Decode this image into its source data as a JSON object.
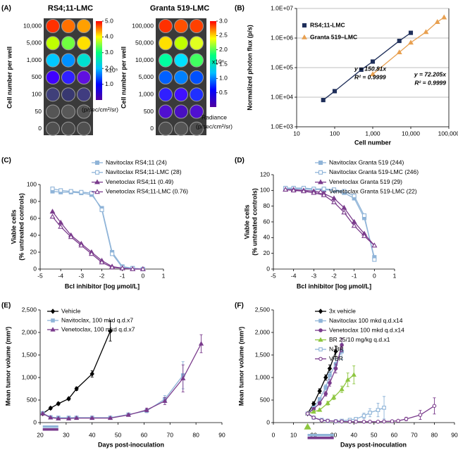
{
  "chart_data": [
    {
      "type": "plate",
      "panel": "(A)",
      "title": "RS4;11-LMC",
      "ylabel": "Cell number per well",
      "rows": [
        "10,000",
        "5,000",
        "1,000",
        "500",
        "100",
        "50",
        "0"
      ],
      "well_colors": [
        [
          "#ff3000",
          "#ff7000",
          "#ffa000"
        ],
        [
          "#c0ff00",
          "#70ff40",
          "#ffe000"
        ],
        [
          "#00c8ff",
          "#0090ff",
          "#00e0d0"
        ],
        [
          "#4000ff",
          "#3020ff",
          "#6010e0"
        ],
        [
          "#40407a",
          "#383870",
          "#403c80"
        ],
        [
          "#555555",
          "#585858",
          "#555555"
        ],
        [
          "#505050",
          "#4c4c4c",
          "#505050"
        ]
      ],
      "colormap": [
        "#5000a0",
        "#0000ff",
        "#00c0ff",
        "#00ff80",
        "#ffff00",
        "#ff0000"
      ],
      "clim": [
        0,
        5
      ],
      "cticks": [
        {
          "value": 1,
          "label": "1.0"
        },
        {
          "value": 2,
          "label": "2.0"
        },
        {
          "value": 3,
          "label": "3.0"
        },
        {
          "value": 4,
          "label": "4.0"
        },
        {
          "value": 5,
          "label": "5.0"
        }
      ],
      "multiplier": "x10⁵",
      "colorbar_label": "(p/sec/cm²/sr)"
    },
    {
      "type": "plate",
      "title": "Granta 519-LMC",
      "ylabel": "Cell number per well",
      "rows": [
        "100,000",
        "50,000",
        "10,000",
        "5,000",
        "1,000",
        "500",
        "0"
      ],
      "well_colors": [
        [
          "#ff3000",
          "#ff5000",
          "#ff4000"
        ],
        [
          "#ffe000",
          "#c0ff00",
          "#e0ff20"
        ],
        [
          "#00ffa0",
          "#00e0ff",
          "#40ff60"
        ],
        [
          "#0060ff",
          "#0080ff",
          "#0050ff"
        ],
        [
          "#3020ff",
          "#4010ff",
          "#2030ff"
        ],
        [
          "#5010d0",
          "#4810c0",
          "#5010d0"
        ],
        [
          "#505050",
          "#555555",
          "#505050"
        ]
      ],
      "colormap": [
        "#5000a0",
        "#0000ff",
        "#00c0ff",
        "#00ff80",
        "#ffff00",
        "#ff0000"
      ],
      "clim": [
        0,
        3
      ],
      "cticks": [
        {
          "value": 0.5,
          "label": "0.5"
        },
        {
          "value": 1,
          "label": "1.0"
        },
        {
          "value": 1.5,
          "label": "1.5"
        },
        {
          "value": 2,
          "label": "2.0"
        },
        {
          "value": 2.5,
          "label": "2.5"
        },
        {
          "value": 3,
          "label": "3.0"
        }
      ],
      "multiplier": "x10⁶",
      "colorbar_title": "Radiance",
      "colorbar_label": "(p/sec/cm²/sr)"
    },
    {
      "type": "scatter",
      "panel": "(B)",
      "xlabel": "Cell number",
      "ylabel": "Normalized photon flux (p/s)",
      "xlog": true,
      "ylog": true,
      "grid": true,
      "xlim": [
        10,
        100000
      ],
      "xticks": [
        10,
        100,
        {
          "value": 1000,
          "label": "1,000"
        },
        {
          "value": 10000,
          "label": "10,000"
        },
        {
          "value": 100000,
          "label": "100,000"
        }
      ],
      "ylim": [
        1000,
        10000000
      ],
      "yticks": [
        {
          "value": 1000,
          "label": "1.0E+03"
        },
        {
          "value": 10000,
          "label": "1.0E+04"
        },
        {
          "value": 100000,
          "label": "1.0E+05"
        },
        {
          "value": 1000000,
          "label": "1.0E+06"
        },
        {
          "value": 10000000,
          "label": "1.0E+07"
        }
      ],
      "series": [
        {
          "name": "RS4;11-LMC",
          "color": "#1f2f5a",
          "marker": "square",
          "filled": true,
          "x": [
            50,
            100,
            500,
            1000,
            5000,
            10000
          ],
          "values": [
            8000,
            16000,
            85000,
            160000,
            800000,
            1500000
          ]
        },
        {
          "name": "Granta 519–LMC",
          "color": "#e8a050",
          "marker": "triangle",
          "filled": true,
          "x": [
            1000,
            5000,
            10000,
            25000,
            50000,
            75000
          ],
          "values": [
            60000,
            330000,
            700000,
            1600000,
            3500000,
            5000000
          ]
        }
      ],
      "annotations": [
        {
          "text": "y = 150.81x",
          "color": "#1f2f5a"
        },
        {
          "text": "R² = 0.9999",
          "color": "#1f2f5a"
        },
        {
          "text": "y = 72.205x",
          "color": "#e8a050"
        },
        {
          "text": "R² = 0.9999",
          "color": "#e8a050"
        }
      ]
    },
    {
      "type": "line",
      "panel": "(C)",
      "xlabel": "Bcl inhibitor [log µmol/L]",
      "ylabel": [
        "Viable cells",
        "(% untreated controls)"
      ],
      "xlim": [
        -5,
        1
      ],
      "xticks": [
        -5,
        -4,
        -3,
        -2,
        -1,
        0,
        1
      ],
      "ylim": [
        0,
        100
      ],
      "yticks": [
        0,
        20,
        40,
        60,
        80,
        100
      ],
      "series": [
        {
          "name": "Navitoclax RS4;11 (24)",
          "color": "#8fb4d8",
          "marker": "square",
          "filled": true,
          "x": [
            -4.4,
            -4,
            -3.5,
            -3,
            -2.5,
            -2,
            -1.5,
            -1,
            -0.5,
            0
          ],
          "values": [
            92,
            91,
            91,
            90,
            88,
            72,
            20,
            3,
            1,
            0
          ]
        },
        {
          "name": "Navitoclax RS4;11-LMC (28)",
          "color": "#8fb4d8",
          "marker": "square",
          "filled": false,
          "x": [
            -4.4,
            -4,
            -3.5,
            -3,
            -2.5,
            -2,
            -1.5,
            -1,
            -0.5,
            0
          ],
          "values": [
            95,
            93,
            92,
            91,
            90,
            70,
            18,
            2,
            1,
            0
          ]
        },
        {
          "name": "Venetoclax RS4;11 (0.49)",
          "color": "#7a3b8c",
          "marker": "triangle",
          "filled": true,
          "x": [
            -4.4,
            -4,
            -3.5,
            -3,
            -2.5,
            -2,
            -1.5,
            -1,
            -0.5,
            0
          ],
          "values": [
            68,
            55,
            40,
            30,
            20,
            10,
            3,
            1,
            0,
            0
          ]
        },
        {
          "name": "Venetoclax RS4;11-LMC (0.76)",
          "color": "#7a3b8c",
          "marker": "triangle",
          "filled": false,
          "x": [
            -4.4,
            -4,
            -3.5,
            -3,
            -2.5,
            -2,
            -1.5,
            -1,
            -0.5,
            0
          ],
          "values": [
            62,
            50,
            38,
            28,
            18,
            8,
            2,
            1,
            0,
            0
          ]
        }
      ]
    },
    {
      "type": "line",
      "panel": "(D)",
      "xlabel": "Bcl inhibitor [log µmol/L]",
      "ylabel": [
        "Viable cells",
        "(% untreated controls)"
      ],
      "xlim": [
        -5,
        1
      ],
      "xticks": [
        -5,
        -4,
        -3,
        -2,
        -1,
        0,
        1
      ],
      "ylim": [
        0,
        120
      ],
      "yticks": [
        0,
        20,
        40,
        60,
        80,
        100,
        120
      ],
      "series": [
        {
          "name": "Navitoclax Granta 519 (244)",
          "color": "#8fb4d8",
          "marker": "square",
          "filled": true,
          "x": [
            -4.4,
            -4,
            -3.5,
            -3,
            -2.5,
            -2,
            -1.5,
            -1,
            -0.5,
            0
          ],
          "values": [
            102,
            102,
            102,
            101,
            101,
            100,
            97,
            90,
            65,
            15
          ]
        },
        {
          "name": "Navitoclax Granta 519-LMC (246)",
          "color": "#8fb4d8",
          "marker": "square",
          "filled": false,
          "x": [
            -4.4,
            -4,
            -3.5,
            -3,
            -2.5,
            -2,
            -1.5,
            -1,
            -0.5,
            0
          ],
          "values": [
            103,
            103,
            103,
            102,
            102,
            101,
            99,
            93,
            68,
            12
          ]
        },
        {
          "name": "Venetoclax Granta 519 (29)",
          "color": "#7a3b8c",
          "marker": "triangle",
          "filled": true,
          "x": [
            -4.4,
            -4,
            -3.5,
            -3,
            -2.5,
            -2,
            -1.5,
            -1,
            -0.5,
            0
          ],
          "values": [
            101,
            101,
            100,
            99,
            96,
            90,
            78,
            60,
            45,
            30
          ]
        },
        {
          "name": "Venetoclax Granta 519-LMC (22)",
          "color": "#7a3b8c",
          "marker": "triangle",
          "filled": false,
          "x": [
            -4.4,
            -4,
            -3.5,
            -3,
            -2.5,
            -2,
            -1.5,
            -1,
            -0.5,
            0
          ],
          "values": [
            101,
            100,
            99,
            97,
            94,
            85,
            72,
            55,
            42,
            30
          ]
        }
      ]
    },
    {
      "type": "line",
      "panel": "(E)",
      "xlabel": "Days post-inoculation",
      "ylabel": "Mean tumor volume (mm³)",
      "xlim": [
        20,
        90
      ],
      "xticks": [
        20,
        30,
        40,
        50,
        60,
        70,
        80,
        90
      ],
      "ylim": [
        0,
        2500
      ],
      "yticks": [
        0,
        500,
        {
          "value": 1000,
          "label": "1,000"
        },
        {
          "value": 1500,
          "label": "1,500"
        },
        {
          "value": 2000,
          "label": "2,000"
        },
        {
          "value": 2500,
          "label": "2,500"
        }
      ],
      "series": [
        {
          "name": "Vehicle",
          "color": "#000000",
          "marker": "diamond",
          "filled": true,
          "x": [
            21,
            24,
            27,
            31,
            34,
            40,
            47
          ],
          "values": [
            200,
            320,
            420,
            530,
            750,
            1080,
            2030
          ],
          "errors": [
            20,
            30,
            30,
            30,
            40,
            70,
            220
          ]
        },
        {
          "name": "Navitoclax, 100 mkd q.d.x7",
          "color": "#8fb4d8",
          "marker": "square",
          "filled": true,
          "x": [
            21,
            24,
            27,
            31,
            34,
            40,
            47,
            54,
            61,
            68,
            75
          ],
          "values": [
            210,
            120,
            110,
            110,
            110,
            110,
            110,
            180,
            260,
            520,
            1050
          ],
          "errors": [
            20,
            20,
            15,
            15,
            15,
            15,
            15,
            25,
            40,
            80,
            300
          ]
        },
        {
          "name": "Venetoclax, 100 mkd q.d.x7",
          "color": "#7a3b8c",
          "marker": "triangle",
          "filled": true,
          "x": [
            21,
            24,
            27,
            31,
            34,
            40,
            47,
            54,
            61,
            68,
            75,
            82
          ],
          "values": [
            200,
            110,
            90,
            90,
            100,
            100,
            100,
            170,
            280,
            480,
            980,
            1750
          ],
          "errors": [
            20,
            15,
            15,
            15,
            15,
            15,
            15,
            25,
            40,
            80,
            300,
            200
          ]
        }
      ],
      "treatment": [
        {
          "color": "#8fb4d8",
          "start": 21,
          "end": 27
        },
        {
          "color": "#7a3b8c",
          "start": 21,
          "end": 27
        }
      ]
    },
    {
      "type": "line",
      "panel": "(F)",
      "xlabel": "Days post-inoculation",
      "ylabel": "Mean tumor volume (mm³)",
      "xlim": [
        0,
        90
      ],
      "xticks": [
        0,
        10,
        20,
        30,
        40,
        50,
        60,
        70,
        80,
        90
      ],
      "ylim": [
        0,
        2500
      ],
      "yticks": [
        0,
        500,
        {
          "value": 1000,
          "label": "1,000"
        },
        {
          "value": 1500,
          "label": "1,500"
        },
        {
          "value": 2000,
          "label": "2,000"
        },
        {
          "value": 2500,
          "label": "2,500"
        }
      ],
      "series": [
        {
          "name": "3x vehicle",
          "color": "#000000",
          "marker": "diamond",
          "filled": true,
          "x": [
            17,
            20,
            23,
            26,
            28,
            31
          ],
          "values": [
            200,
            420,
            700,
            1000,
            1200,
            1580
          ],
          "errors": [
            20,
            40,
            50,
            60,
            80,
            120
          ]
        },
        {
          "name": "Navitoclax 100 mkd q.d.x14",
          "color": "#8fb4d8",
          "marker": "square",
          "filled": true,
          "x": [
            17,
            20,
            23,
            26,
            28,
            31,
            34
          ],
          "values": [
            200,
            330,
            520,
            780,
            1050,
            1300,
            1580
          ],
          "errors": [
            20,
            30,
            40,
            60,
            80,
            120,
            180
          ]
        },
        {
          "name": "Venetoclax 100 mkd q.d.x14",
          "color": "#7a3b8c",
          "marker": "circle",
          "filled": true,
          "x": [
            17,
            20,
            23,
            26,
            28,
            31,
            34
          ],
          "values": [
            200,
            300,
            430,
            640,
            880,
            1200,
            1720
          ],
          "errors": [
            20,
            30,
            40,
            50,
            70,
            100,
            150
          ]
        },
        {
          "name": "BR 25/10 mg/kg q.d.x1",
          "color": "#8dc63f",
          "marker": "triangle",
          "filled": true,
          "x": [
            17,
            20,
            23,
            27,
            30,
            34,
            37,
            40
          ],
          "values": [
            200,
            240,
            280,
            430,
            560,
            740,
            950,
            1060
          ],
          "errors": [
            20,
            20,
            30,
            40,
            50,
            70,
            150,
            200
          ]
        },
        {
          "name": "N-BR",
          "color": "#8fb4d8",
          "marker": "square",
          "filled": false,
          "x": [
            17,
            20,
            24,
            27,
            31,
            34,
            38,
            41,
            45,
            48,
            52,
            55
          ],
          "values": [
            200,
            110,
            60,
            40,
            30,
            40,
            60,
            80,
            150,
            220,
            280,
            330
          ],
          "errors": [
            20,
            20,
            15,
            10,
            10,
            15,
            20,
            30,
            60,
            90,
            150,
            250
          ]
        },
        {
          "name": "V-BR",
          "color": "#7a3b8c",
          "marker": "circle",
          "filled": false,
          "x": [
            17,
            20,
            24,
            27,
            31,
            34,
            38,
            41,
            45,
            48,
            52,
            55,
            59,
            62,
            66,
            73,
            80
          ],
          "values": [
            200,
            110,
            50,
            40,
            30,
            25,
            20,
            20,
            20,
            20,
            20,
            25,
            30,
            40,
            80,
            170,
            370
          ],
          "errors": [
            20,
            20,
            10,
            10,
            10,
            10,
            5,
            5,
            5,
            5,
            5,
            10,
            10,
            20,
            40,
            100,
            180
          ]
        }
      ],
      "treatment": [
        {
          "color": "#8fb4d8",
          "start": 17,
          "end": 30
        },
        {
          "color": "#7a3b8c",
          "start": 17,
          "end": 30
        }
      ],
      "dose_marks": [
        {
          "x": 17,
          "color": "#8dc63f"
        }
      ]
    }
  ]
}
